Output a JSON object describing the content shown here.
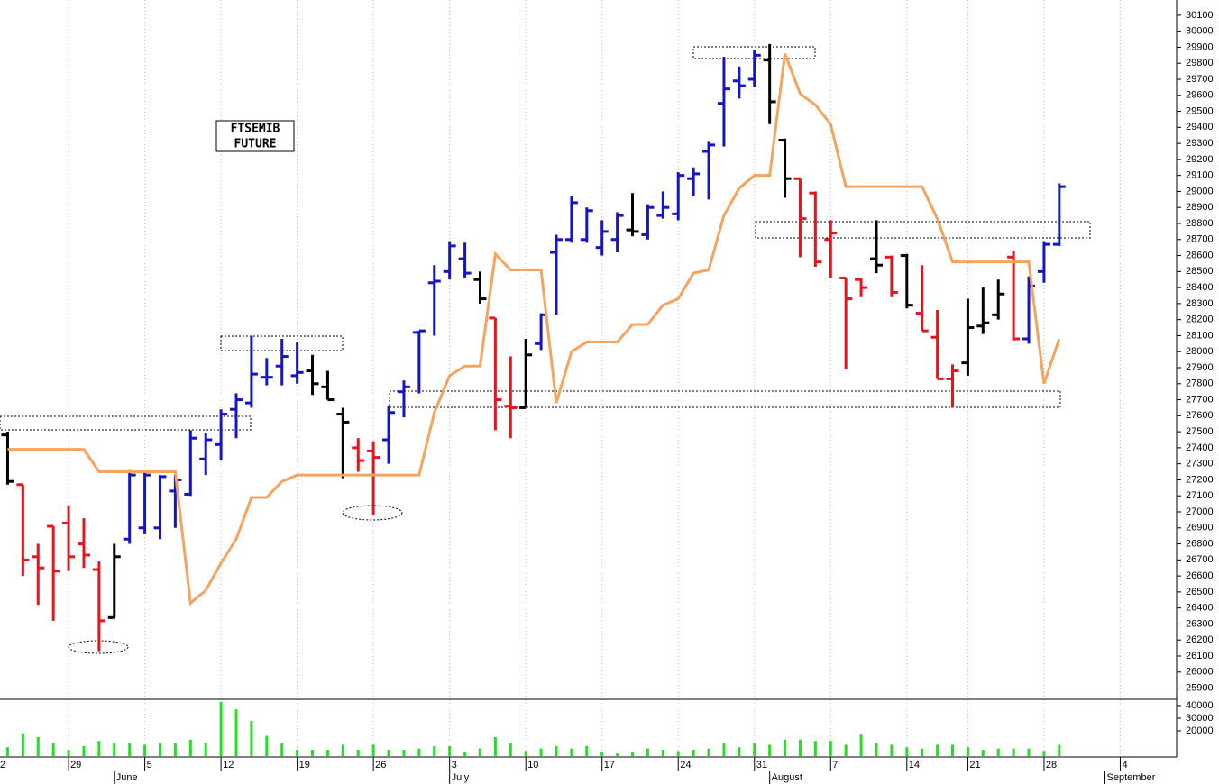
{
  "chart_data": {
    "type": "ohlc",
    "annotation_lines": [
      "FTSEMIB",
      "FUTURE"
    ],
    "xlim": [
      -0.5,
      76.7
    ],
    "xticks": [
      {
        "value": -1,
        "label": "2"
      },
      {
        "value": 4,
        "label": "29"
      },
      {
        "value": 9,
        "label": "5"
      },
      {
        "value": 14,
        "label": "12"
      },
      {
        "value": 19,
        "label": "19"
      },
      {
        "value": 24,
        "label": "26"
      },
      {
        "value": 29,
        "label": "3"
      },
      {
        "value": 34,
        "label": "10"
      },
      {
        "value": 39,
        "label": "17"
      },
      {
        "value": 44,
        "label": "24"
      },
      {
        "value": 49,
        "label": "31"
      },
      {
        "value": 54,
        "label": "7"
      },
      {
        "value": 59,
        "label": "14"
      },
      {
        "value": 63,
        "label": "21"
      },
      {
        "value": 68,
        "label": "28"
      },
      {
        "value": 73,
        "label": "4"
      }
    ],
    "month_ticks": [
      {
        "value": 7,
        "label": "June"
      },
      {
        "value": 29,
        "label": "July"
      },
      {
        "value": 50,
        "label": "August"
      },
      {
        "value": 72,
        "label": "September"
      }
    ],
    "ylim": [
      25830,
      30150
    ],
    "yticks": [
      25900,
      26000,
      26100,
      26200,
      26300,
      26400,
      26500,
      26600,
      26700,
      26800,
      26900,
      27000,
      27100,
      27200,
      27300,
      27400,
      27500,
      27600,
      27700,
      27800,
      27900,
      28000,
      28100,
      28200,
      28300,
      28400,
      28500,
      28600,
      28700,
      28800,
      28900,
      29000,
      29100,
      29200,
      29300,
      29400,
      29500,
      29600,
      29700,
      29800,
      29900,
      30000,
      30100
    ],
    "open": [
      27480,
      27170,
      26720,
      26910,
      26930,
      26800,
      26640,
      26340,
      26830,
      26900,
      26900,
      27130,
      27110,
      27330,
      27420,
      27640,
      27680,
      27840,
      27910,
      27850,
      27880,
      27780,
      27610,
      27400,
      27380,
      27450,
      27750,
      28120,
      28430,
      28500,
      28580,
      28450,
      28210,
      27660,
      27650,
      28050,
      28620,
      28700,
      28700,
      28650,
      28700,
      28760,
      28730,
      28850,
      28860,
      29080,
      29250,
      29550,
      29690,
      29700,
      29820,
      29320,
      29080,
      28990,
      28700,
      28460,
      28450,
      28580,
      28590,
      28600,
      28240,
      28090,
      27830,
      27930,
      28160,
      28230,
      28590,
      28080,
      28500,
      28670
    ],
    "high": [
      27500,
      27170,
      26800,
      26910,
      27040,
      26960,
      26690,
      26800,
      27260,
      27250,
      27230,
      27230,
      27510,
      27490,
      27640,
      27740,
      28100,
      27960,
      28080,
      28060,
      27980,
      27880,
      27650,
      27460,
      27440,
      27660,
      27820,
      28130,
      28540,
      28690,
      28680,
      28500,
      28210,
      27970,
      28080,
      28240,
      28730,
      28970,
      28900,
      28820,
      28870,
      28990,
      28920,
      29000,
      29120,
      29150,
      29310,
      29840,
      29780,
      29880,
      29920,
      29330,
      29080,
      29000,
      28820,
      28460,
      28460,
      28820,
      28600,
      28610,
      28540,
      28260,
      27920,
      28330,
      28400,
      28450,
      28630,
      28470,
      28690,
      29050
    ],
    "low": [
      27170,
      26600,
      26420,
      26320,
      26630,
      26650,
      26130,
      26340,
      26800,
      26860,
      26830,
      26900,
      27100,
      27230,
      27320,
      27460,
      27650,
      27790,
      27790,
      27800,
      27730,
      27700,
      27210,
      27250,
      26980,
      27300,
      27590,
      27740,
      28100,
      28450,
      28460,
      28300,
      27510,
      27460,
      27650,
      28010,
      28230,
      28680,
      28680,
      28600,
      28620,
      28720,
      28700,
      28830,
      28820,
      28970,
      28950,
      29280,
      29580,
      29650,
      29420,
      28960,
      28590,
      28530,
      28460,
      27890,
      28340,
      28490,
      28340,
      28270,
      28130,
      27830,
      27650,
      27850,
      28110,
      28200,
      28070,
      28050,
      28430,
      28660
    ],
    "close": [
      27190,
      26700,
      26650,
      26630,
      26720,
      26730,
      26320,
      26720,
      27230,
      27230,
      27220,
      27200,
      27460,
      27450,
      27610,
      27700,
      27860,
      27840,
      27970,
      27870,
      27800,
      27700,
      27560,
      27320,
      27340,
      27620,
      27780,
      28130,
      28440,
      28660,
      28490,
      28330,
      27700,
      27650,
      27980,
      28230,
      28700,
      28930,
      28880,
      28750,
      28850,
      28750,
      28900,
      28900,
      29100,
      29110,
      29290,
      29640,
      29660,
      29850,
      29560,
      29080,
      28830,
      28560,
      28740,
      28330,
      28400,
      28540,
      28370,
      28290,
      28130,
      27830,
      27880,
      28150,
      28180,
      28360,
      28080,
      28410,
      28670,
      29030
    ],
    "colors": [
      "#000000",
      "#e8141c",
      "#e8141c",
      "#e8141c",
      "#e8141c",
      "#e8141c",
      "#e8141c",
      "#000000",
      "#1414c8",
      "#1414c8",
      "#1414c8",
      "#1414c8",
      "#1414c8",
      "#1414c8",
      "#1414c8",
      "#1414c8",
      "#1414c8",
      "#1414c8",
      "#1414c8",
      "#1414c8",
      "#000000",
      "#000000",
      "#000000",
      "#e8141c",
      "#e8141c",
      "#1414c8",
      "#1414c8",
      "#1414c8",
      "#1414c8",
      "#1414c8",
      "#1414c8",
      "#000000",
      "#e8141c",
      "#e8141c",
      "#000000",
      "#1414c8",
      "#1414c8",
      "#1414c8",
      "#1414c8",
      "#1414c8",
      "#1414c8",
      "#000000",
      "#1414c8",
      "#1414c8",
      "#1414c8",
      "#1414c8",
      "#1414c8",
      "#1414c8",
      "#1414c8",
      "#1414c8",
      "#000000",
      "#000000",
      "#e8141c",
      "#e8141c",
      "#e8141c",
      "#e8141c",
      "#e8141c",
      "#000000",
      "#e8141c",
      "#000000",
      "#e8141c",
      "#e8141c",
      "#e8141c",
      "#000000",
      "#000000",
      "#000000",
      "#e8141c",
      "#1414c8",
      "#1414c8",
      "#1414c8"
    ],
    "line": {
      "color": "#f5a35e",
      "values": [
        27390,
        27390,
        27390,
        27390,
        27390,
        27390,
        27250,
        27250,
        27250,
        27250,
        27250,
        27250,
        26430,
        26510,
        26680,
        26830,
        27090,
        27090,
        27190,
        27230,
        27230,
        27230,
        27230,
        27230,
        27230,
        27230,
        27230,
        27230,
        27620,
        27850,
        27910,
        27910,
        28610,
        28510,
        28510,
        28510,
        27680,
        28000,
        28060,
        28060,
        28060,
        28170,
        28170,
        28290,
        28330,
        28490,
        28510,
        28850,
        29020,
        29100,
        29100,
        29860,
        29610,
        29540,
        29420,
        29030,
        29030,
        29030,
        29030,
        29030,
        29030,
        28830,
        28560,
        28560,
        28560,
        28560,
        28560,
        28560,
        27800,
        28080
      ]
    },
    "volume": {
      "color": "#22e022",
      "ylim": [
        0,
        45000
      ],
      "yticks": [
        20000,
        30000,
        40000
      ],
      "values": [
        7000,
        18000,
        15000,
        10000,
        5000,
        8000,
        12000,
        10000,
        10000,
        9000,
        10000,
        10000,
        13000,
        10000,
        43000,
        37000,
        28000,
        16000,
        10000,
        5000,
        5000,
        5000,
        9000,
        5000,
        9000,
        5000,
        5000,
        6000,
        8000,
        8000,
        3000,
        6000,
        15000,
        10000,
        4000,
        6000,
        8000,
        6000,
        8000,
        3000,
        2000,
        3000,
        6000,
        5000,
        4000,
        5000,
        6000,
        10000,
        7000,
        10000,
        9000,
        13000,
        13000,
        12000,
        12000,
        9000,
        17000,
        10000,
        9000,
        7000,
        6000,
        9000,
        9000,
        7000,
        5000,
        6000,
        6000,
        6000,
        4000,
        9000
      ]
    }
  }
}
